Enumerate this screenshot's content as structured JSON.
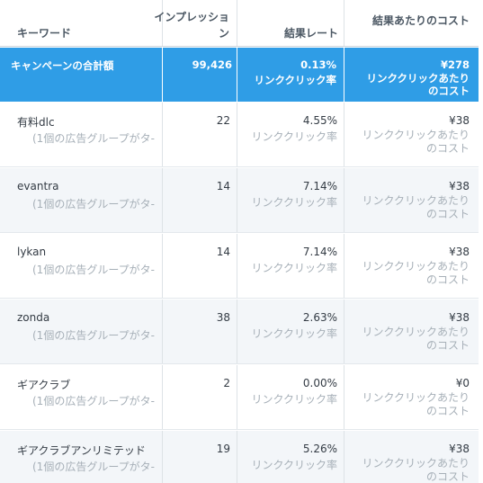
{
  "header": {
    "keyword": "キーワード",
    "impressions": "インプレッション",
    "result_rate": "結果レート",
    "cost_per_result": "結果あたりのコスト"
  },
  "total": {
    "label": "キャンペーンの合計額",
    "impressions": "99,426",
    "rate": "0.13%",
    "rate_sub": "リンククリック率",
    "cost": "¥278",
    "cost_sub": "リンククリックあたりのコスト"
  },
  "rows": [
    {
      "keyword": "有料dlc",
      "sub": "(1個の広告グループがタ-",
      "impressions": "22",
      "rate": "4.55%",
      "rate_sub": "リンククリック率",
      "cost": "¥38",
      "cost_sub": "リンククリックあたりのコスト"
    },
    {
      "keyword": "evantra",
      "sub": "(1個の広告グループがタ-",
      "impressions": "14",
      "rate": "7.14%",
      "rate_sub": "リンククリック率",
      "cost": "¥38",
      "cost_sub": "リンククリックあたりのコスト"
    },
    {
      "keyword": "lykan",
      "sub": "(1個の広告グループがタ-",
      "impressions": "14",
      "rate": "7.14%",
      "rate_sub": "リンククリック率",
      "cost": "¥38",
      "cost_sub": "リンククリックあたりのコスト"
    },
    {
      "keyword": "zonda",
      "sub": "(1個の広告グループがタ-",
      "impressions": "38",
      "rate": "2.63%",
      "rate_sub": "リンククリック率",
      "cost": "¥38",
      "cost_sub": "リンククリックあたりのコスト"
    },
    {
      "keyword": "ギアクラブ",
      "sub": "(1個の広告グループがタ-",
      "impressions": "2",
      "rate": "0.00%",
      "rate_sub": "リンククリック率",
      "cost": "¥0",
      "cost_sub": "リンククリックあたりのコスト"
    },
    {
      "keyword": "ギアクラブアンリミテッド",
      "sub": "(1個の広告グループがタ-",
      "impressions": "19",
      "rate": "5.26%",
      "rate_sub": "リンククリック率",
      "cost": "¥38",
      "cost_sub": "リンククリックあたりのコスト"
    }
  ],
  "colors": {
    "total_bg": "#2f9de6",
    "alt_row_bg": "#f3f6f9",
    "muted_text": "#a7b0b8"
  }
}
